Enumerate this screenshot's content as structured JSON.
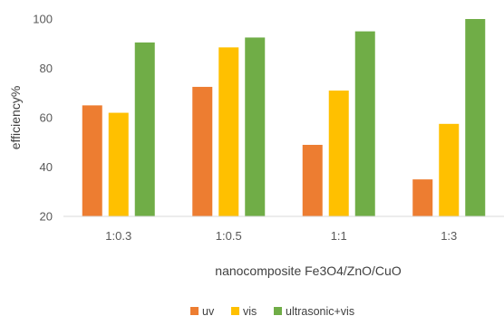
{
  "chart_data": {
    "type": "bar",
    "title": "",
    "xlabel": "nanocomposite Fe3O4/ZnO/CuO",
    "ylabel": "efficiency%",
    "categories": [
      "1:0.3",
      "1:0.5",
      "1:1",
      "1:3"
    ],
    "series": [
      {
        "name": "uv",
        "color": "#ED7D31",
        "values": [
          65,
          72.5,
          49,
          35
        ]
      },
      {
        "name": "vis",
        "color": "#FFC000",
        "values": [
          62,
          88.5,
          71,
          57.5
        ]
      },
      {
        "name": "ultrasonic+vis",
        "color": "#70AD47",
        "values": [
          90.5,
          92.5,
          95,
          100
        ]
      }
    ],
    "ylim": [
      20,
      100
    ],
    "yticks": [
      20,
      40,
      60,
      80,
      100
    ],
    "grid": false,
    "legend_position": "bottom"
  }
}
